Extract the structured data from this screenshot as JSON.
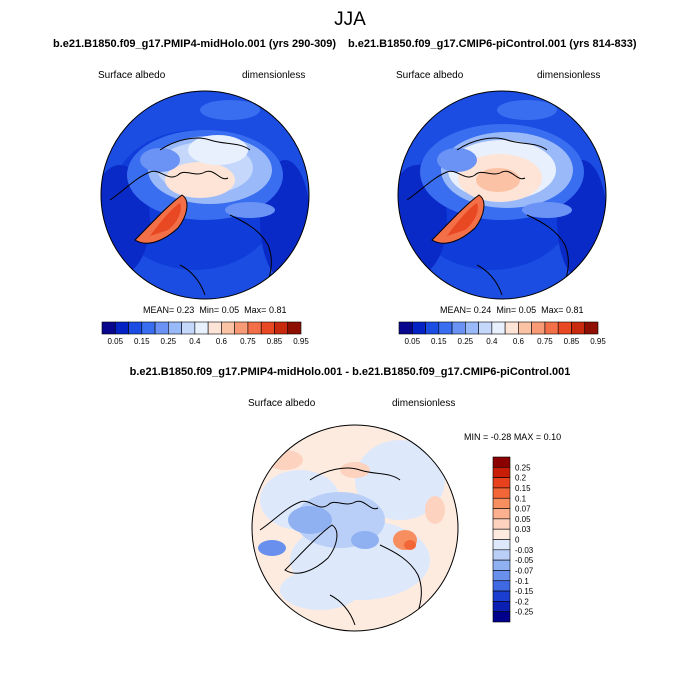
{
  "title": "JJA",
  "panels": [
    {
      "case": "b.e21.B1850.f09_g17.PMIP4-midHolo.001 (yrs 290-309)",
      "variable": "Surface albedo",
      "units": "dimensionless",
      "stats": {
        "mean_label": "MEAN=",
        "mean": "0.23",
        "min_label": "Min=",
        "min": "0.05",
        "max_label": "Max=",
        "max": "0.81"
      }
    },
    {
      "case": "b.e21.B1850.f09_g17.CMIP6-piControl.001 (yrs 814-833)",
      "variable": "Surface albedo",
      "units": "dimensionless",
      "stats": {
        "mean_label": "MEAN=",
        "mean": "0.24",
        "min_label": "Min=",
        "min": "0.05",
        "max_label": "Max=",
        "max": "0.81"
      }
    }
  ],
  "colorbar": {
    "labels": [
      "0.05",
      "0.15",
      "0.25",
      "0.4",
      "0.6",
      "0.75",
      "0.85",
      "0.95"
    ],
    "colors": [
      "#08068c",
      "#0522c4",
      "#1c4de3",
      "#3a6ef0",
      "#6a93f5",
      "#9ab9f8",
      "#c5d8fb",
      "#e8f0fd",
      "#fde4d6",
      "#fbc2a6",
      "#f79a75",
      "#f36f48",
      "#e84822",
      "#c92a0e",
      "#8f0e02"
    ]
  },
  "difference": {
    "title": "b.e21.B1850.f09_g17.PMIP4-midHolo.001 - b.e21.B1850.f09_g17.CMIP6-piControl.001",
    "variable": "Surface albedo",
    "units": "dimensionless",
    "stats": {
      "min_label": "MIN =",
      "min": "-0.28",
      "max_label": "MAX =",
      "max": "0.10"
    },
    "colorbar": {
      "labels": [
        "0.25",
        "0.2",
        "0.15",
        "0.1",
        "0.07",
        "0.05",
        "0.03",
        "0",
        "-0.03",
        "-0.05",
        "-0.07",
        "-0.1",
        "-0.15",
        "-0.2",
        "-0.25"
      ],
      "colors": [
        "#8b0000",
        "#c81e08",
        "#e8411d",
        "#f26637",
        "#f78e60",
        "#fbb18f",
        "#fdd3bf",
        "#fdebe0",
        "#dde8fb",
        "#b9cff7",
        "#8fb1f2",
        "#6990ec",
        "#3f68e3",
        "#1a3fd0",
        "#0b1fb2",
        "#00008b"
      ]
    }
  }
}
